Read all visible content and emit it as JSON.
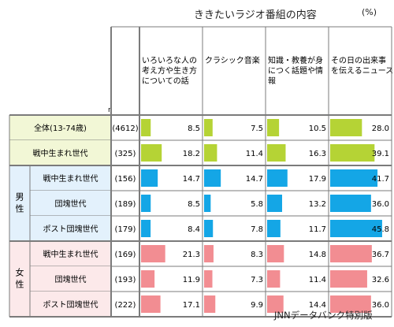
{
  "title": "ききたいラジオ番組の内容",
  "unit": "(%)",
  "source": "JNNデータバンク特別版",
  "n_header": "n",
  "colors": {
    "all": "#b5d335",
    "male": "#14a6e6",
    "female": "#f28d92",
    "all_bg": "#f2f7d6",
    "male_bg": "#e3f1fc",
    "female_bg": "#fce9ea",
    "border": "#7b7b7b"
  },
  "chart_data": {
    "type": "table",
    "columns": [
      {
        "name": "いろいろな人の考え方や生き方についての話",
        "lines": [
          "いろいろな人の",
          "考え方や生き方",
          "についての話"
        ]
      },
      {
        "name": "クラシック音楽",
        "lines": [
          "クラシック音楽"
        ]
      },
      {
        "name": "知識・教養が身につく話題や情報",
        "lines": [
          "知識・教養が身",
          "につく話題や情",
          "報"
        ]
      },
      {
        "name": "その日の出来事を伝えるニュース",
        "lines": [
          "その日の出来事",
          "を伝えるニュース"
        ]
      }
    ],
    "groups": [
      {
        "label": "",
        "color": "all",
        "rows": [
          {
            "label": "全体(13-74歳)",
            "n": "(4612)",
            "values": [
              8.5,
              7.5,
              10.5,
              28.0
            ]
          },
          {
            "label": "戦中生まれ世代",
            "n": "(325)",
            "values": [
              18.2,
              11.4,
              16.3,
              39.1
            ]
          }
        ]
      },
      {
        "label": "男性",
        "color": "male",
        "rows": [
          {
            "label": "戦中生まれ世代",
            "n": "(156)",
            "values": [
              14.7,
              14.7,
              17.9,
              41.7
            ]
          },
          {
            "label": "団塊世代",
            "n": "(189)",
            "values": [
              8.5,
              5.8,
              13.2,
              36.0
            ]
          },
          {
            "label": "ポスト団塊世代",
            "n": "(179)",
            "values": [
              8.4,
              7.8,
              11.7,
              45.8
            ]
          }
        ]
      },
      {
        "label": "女性",
        "color": "female",
        "rows": [
          {
            "label": "戦中生まれ世代",
            "n": "(169)",
            "values": [
              21.3,
              8.3,
              14.8,
              36.7
            ]
          },
          {
            "label": "団塊世代",
            "n": "(193)",
            "values": [
              11.9,
              7.3,
              11.4,
              32.6
            ]
          },
          {
            "label": "ポスト団塊世代",
            "n": "(222)",
            "values": [
              17.1,
              9.9,
              14.4,
              36.0
            ]
          }
        ]
      }
    ]
  }
}
